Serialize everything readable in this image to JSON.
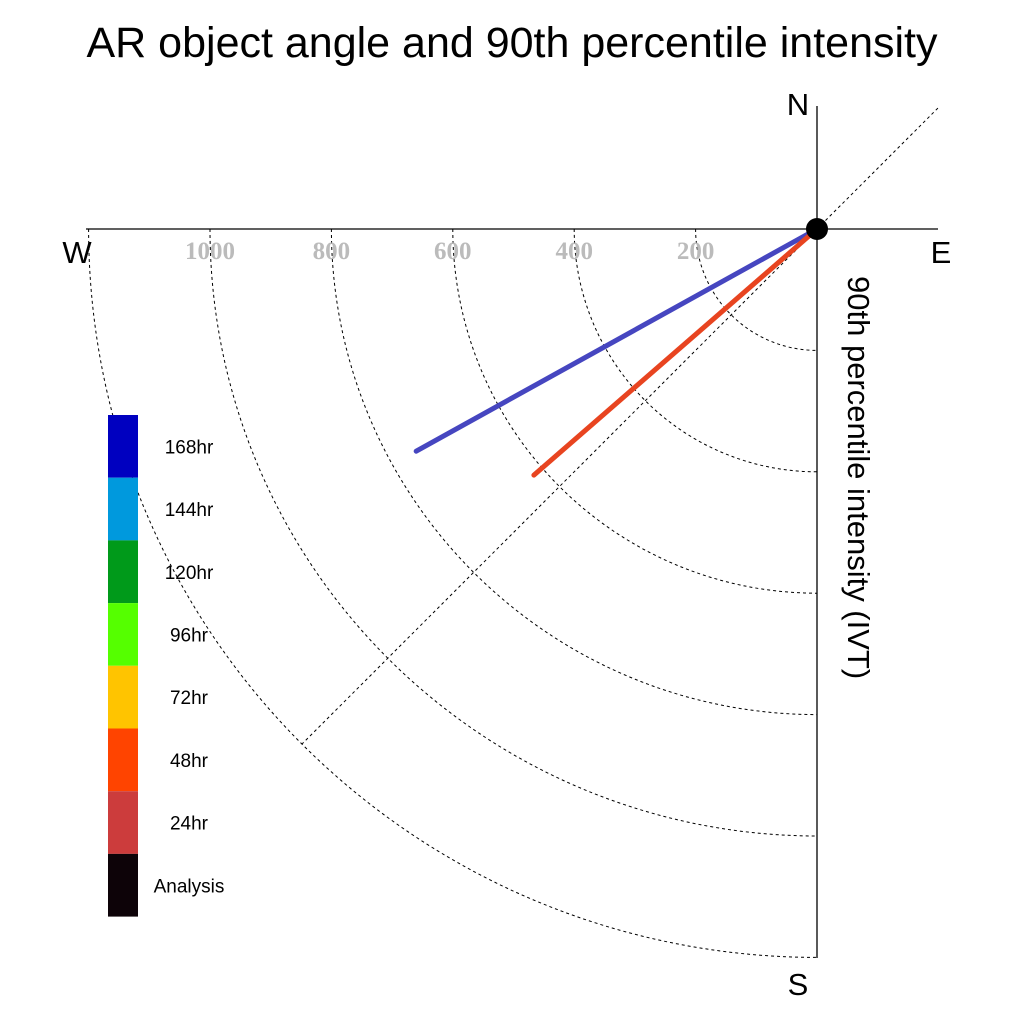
{
  "chart_data": {
    "type": "polar",
    "title": "AR object angle and 90th percentile intensity",
    "radial_axis_label": "90th percentile intensity (IVT)",
    "compass": {
      "north": "N",
      "south": "S",
      "east": "E",
      "west": "W"
    },
    "radial_ticks": [
      200,
      400,
      600,
      800,
      1000
    ],
    "radial_max": 1200,
    "grid": true,
    "legend_position": "left",
    "legend": [
      {
        "label": "168hr",
        "color": "#0000c0"
      },
      {
        "label": "144hr",
        "color": "#0099dd"
      },
      {
        "label": "120hr",
        "color": "#009a1a"
      },
      {
        "label": "96hr",
        "color": "#55ff00"
      },
      {
        "label": "72hr",
        "color": "#ffc400"
      },
      {
        "label": "48hr",
        "color": "#ff4400"
      },
      {
        "label": "24hr",
        "color": "#cc3c3c"
      },
      {
        "label": "Analysis",
        "color": "#0d0308"
      }
    ],
    "series": [
      {
        "name": "168hr",
        "color": "#4646c0",
        "angle_deg_from_west": 29,
        "intensity": 755
      },
      {
        "name": "48hr",
        "color": "#e84420",
        "angle_deg_from_west": 41,
        "intensity": 618
      }
    ]
  }
}
